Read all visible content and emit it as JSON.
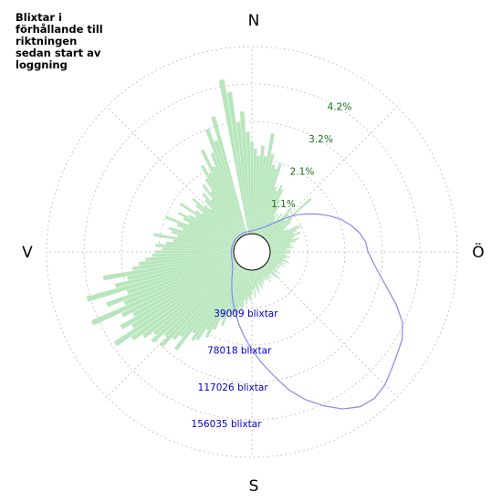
{
  "title": "Blixtar i\nförhållande till\nriktningen\nsedan start av\nloggning",
  "colors": {
    "background": "#ffffff",
    "grid": "#bbbbbb",
    "percent_bars": "#b8e6bc",
    "percent_labels": "#1a6e1a",
    "count_line": "#8888ee",
    "count_labels": "#0000cc",
    "direction_labels": "#000000"
  },
  "chart_data": {
    "type": "polar",
    "directions": [
      "N",
      "Ö",
      "S",
      "V"
    ],
    "grid": true,
    "rings": [
      {
        "percent_label": "1.1%",
        "count_label": "39009 blixtar",
        "percent": 1.1,
        "count": 39009
      },
      {
        "percent_label": "2.1%",
        "count_label": "78018 blixtar",
        "percent": 2.1,
        "count": 78018
      },
      {
        "percent_label": "3.2%",
        "count_label": "117026 blixtar",
        "percent": 3.2,
        "count": 117026
      },
      {
        "percent_label": "4.2%",
        "count_label": "156035 blixtar",
        "percent": 4.2,
        "count": 156035
      }
    ],
    "series": [
      {
        "kind": "bars",
        "unit": "percent",
        "bearings_deg": [
          350,
          352,
          354,
          356,
          358,
          0,
          2,
          4,
          6,
          8,
          10,
          12,
          14,
          16,
          18,
          20,
          22,
          24,
          26,
          28,
          30,
          32,
          34,
          36,
          38,
          40,
          42,
          44,
          46,
          48,
          50,
          52,
          54,
          56,
          58,
          60,
          62,
          64,
          66,
          68,
          70,
          72,
          74,
          76,
          78,
          80,
          82,
          84,
          86,
          88,
          90,
          92,
          94,
          96,
          98,
          100,
          102,
          104,
          106,
          108,
          110,
          112,
          114,
          116,
          118,
          120,
          122,
          124,
          126,
          128,
          130,
          132,
          134,
          136,
          138,
          140,
          142,
          144,
          146,
          148,
          150,
          152,
          154,
          156,
          158,
          160,
          162,
          164,
          166,
          168,
          170,
          172,
          174,
          176,
          178,
          180,
          182,
          184,
          186,
          188,
          190,
          192,
          194,
          196,
          198,
          200,
          202,
          204,
          206,
          208,
          210,
          212,
          214,
          216,
          218,
          220,
          222,
          224,
          226,
          228,
          230,
          232,
          234,
          236,
          238,
          240,
          242,
          244,
          246,
          248,
          250,
          252,
          254,
          256,
          258,
          260,
          262,
          264,
          266,
          268,
          270,
          272,
          274,
          276,
          278,
          280,
          282,
          284,
          286,
          288,
          290,
          292,
          294,
          296,
          298,
          300,
          302,
          304,
          306,
          308,
          310,
          312,
          314,
          316,
          318,
          320,
          322,
          324,
          326,
          328,
          330,
          332,
          334,
          336,
          338,
          340,
          342,
          344,
          346,
          348
        ],
        "values": [
          4.6,
          4.2,
          3.3,
          3.6,
          3.0,
          2.7,
          2.5,
          2.3,
          2.6,
          2.3,
          3.0,
          2.4,
          2.1,
          2.0,
          2.2,
          1.5,
          1.4,
          1.6,
          1.5,
          1.2,
          1.0,
          0.7,
          0.8,
          0.6,
          0.9,
          0.7,
          1.2,
          1.0,
          0.8,
          1.8,
          1.0,
          0.9,
          0.7,
          0.6,
          0.7,
          1.0,
          1.1,
          0.9,
          0.8,
          1.0,
          0.8,
          0.7,
          0.9,
          0.8,
          0.6,
          0.7,
          0.6,
          0.7,
          0.5,
          0.6,
          0.5,
          0.6,
          0.4,
          0.5,
          0.6,
          0.5,
          0.4,
          0.5,
          0.6,
          0.4,
          0.5,
          0.4,
          0.5,
          0.3,
          0.4,
          0.4,
          0.3,
          0.4,
          0.3,
          0.5,
          0.4,
          0.3,
          0.6,
          0.5,
          0.4,
          0.3,
          0.4,
          0.3,
          0.4,
          0.5,
          0.3,
          0.4,
          0.4,
          0.3,
          0.4,
          0.5,
          0.4,
          0.6,
          0.5,
          0.4,
          0.7,
          0.6,
          0.5,
          0.8,
          0.6,
          0.7,
          0.9,
          0.8,
          1.0,
          0.9,
          1.2,
          1.1,
          1.3,
          1.2,
          1.5,
          1.4,
          1.8,
          1.6,
          2.0,
          2.3,
          2.1,
          2.5,
          2.6,
          2.4,
          3.1,
          2.7,
          2.9,
          3.3,
          3.0,
          3.4,
          3.2,
          3.5,
          3.8,
          4.3,
          3.6,
          3.9,
          3.4,
          3.7,
          4.6,
          3.5,
          4.0,
          3.3,
          4.5,
          3.6,
          3.2,
          3.9,
          3.0,
          2.8,
          2.6,
          2.4,
          2.3,
          2.1,
          2.3,
          2.0,
          1.8,
          2.4,
          1.7,
          1.9,
          2.0,
          1.6,
          1.8,
          2.2,
          1.5,
          1.7,
          1.9,
          1.6,
          1.4,
          2.0,
          1.5,
          1.3,
          1.6,
          1.8,
          1.4,
          1.2,
          1.5,
          1.7,
          1.4,
          1.9,
          1.6,
          2.0,
          2.4,
          2.1,
          2.8,
          2.2,
          2.6,
          3.3,
          2.9,
          3.6
        ]
      },
      {
        "kind": "line",
        "unit": "blixtar",
        "bearings_deg": [
          350,
          355,
          0,
          5,
          10,
          15,
          20,
          25,
          30,
          35,
          40,
          45,
          50,
          55,
          60,
          65,
          70,
          75,
          80,
          85,
          90,
          95,
          100,
          105,
          110,
          115,
          120,
          125,
          130,
          135,
          140,
          145,
          150,
          155,
          160,
          165,
          170,
          175,
          180,
          185,
          190,
          195,
          200,
          205,
          210,
          215,
          220,
          225,
          230,
          235,
          240,
          245,
          250,
          255,
          260,
          265,
          270,
          275,
          280,
          285,
          290,
          295,
          300,
          305,
          310,
          315,
          320,
          325,
          330,
          335,
          340,
          345
        ],
        "values": [
          2500,
          2700,
          3000,
          3600,
          4500,
          5700,
          7100,
          9200,
          12000,
          16500,
          22000,
          31000,
          41000,
          50000,
          60000,
          70000,
          80000,
          88000,
          95000,
          100000,
          102000,
          108000,
          116000,
          127000,
          141000,
          154000,
          162000,
          166000,
          171000,
          177000,
          180000,
          178000,
          170000,
          158000,
          145000,
          130000,
          112000,
          97000,
          83000,
          70000,
          58000,
          47000,
          38000,
          30000,
          23000,
          17500,
          13000,
          9800,
          7400,
          5700,
          4500,
          3700,
          3100,
          2800,
          2600,
          2450,
          2400,
          2400,
          2400,
          2400,
          2400,
          2450,
          2450,
          2500,
          2500,
          2500,
          2500,
          2500,
          2500,
          2500,
          2500,
          2500
        ]
      }
    ]
  }
}
